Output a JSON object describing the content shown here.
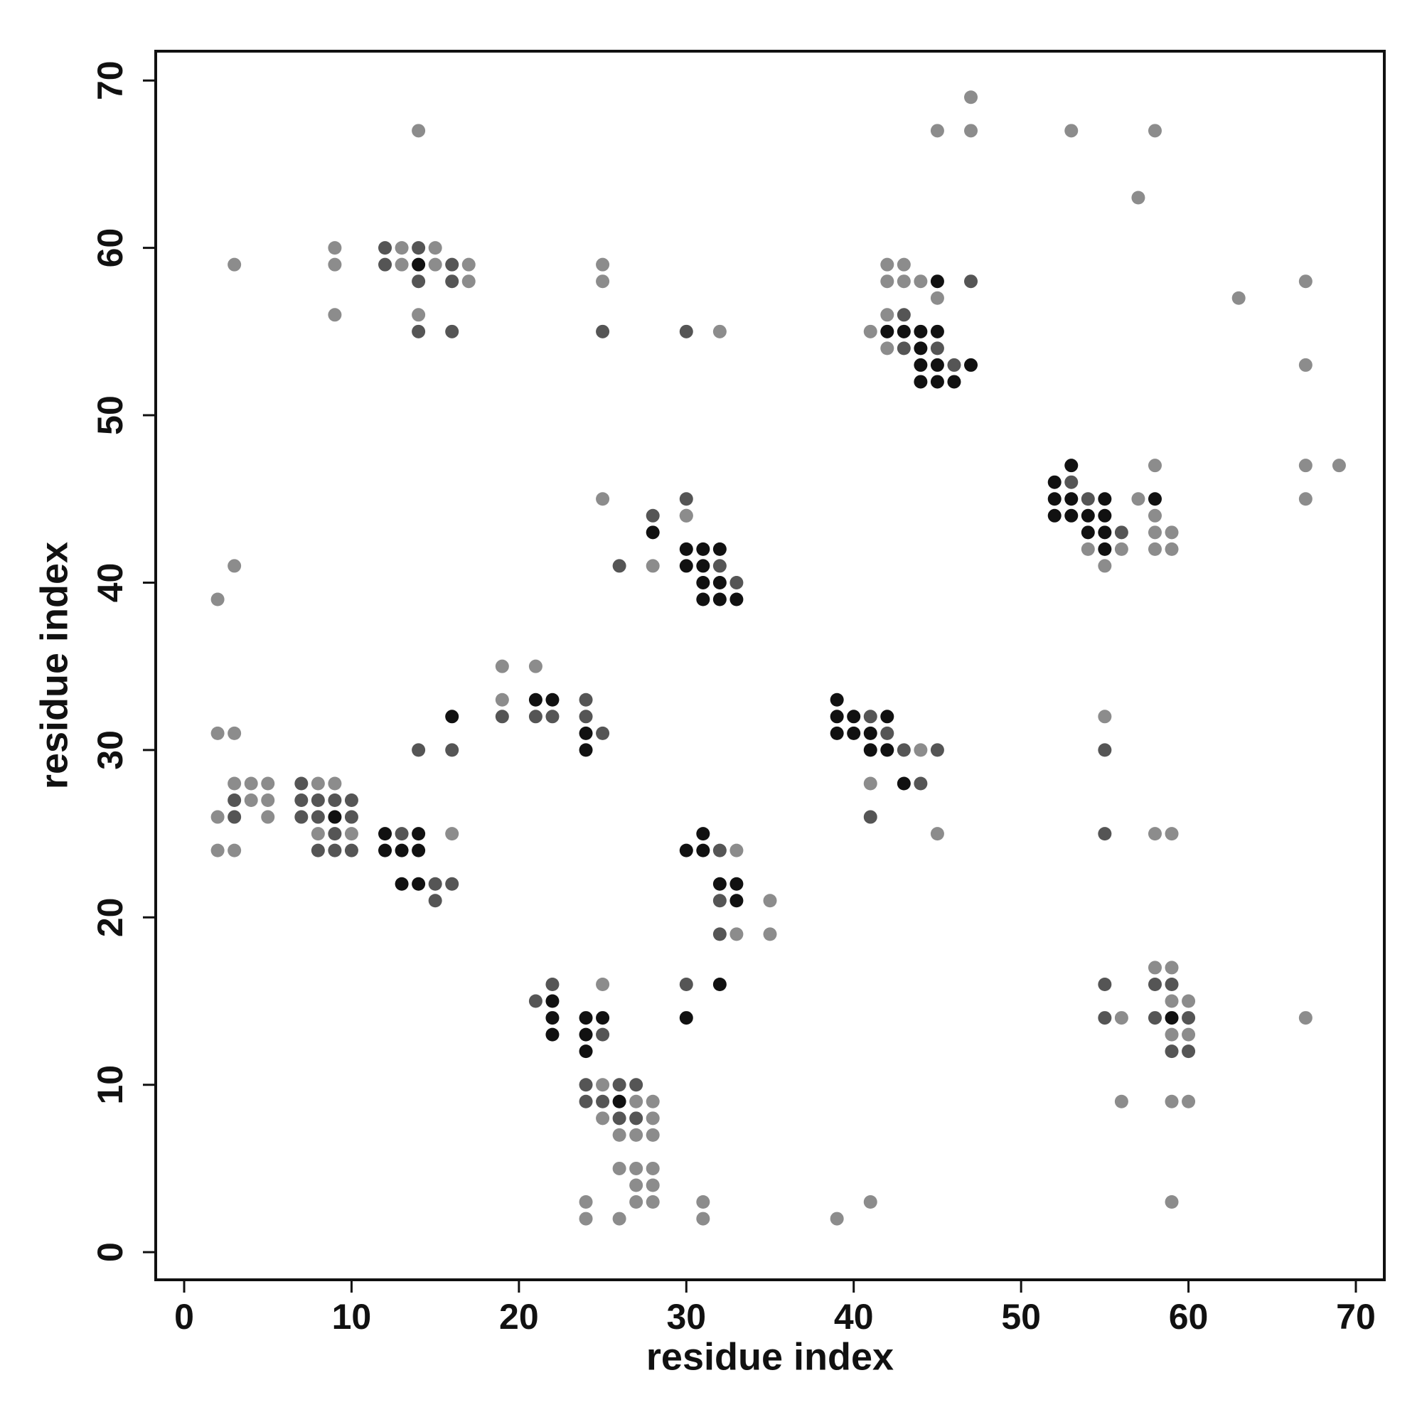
{
  "chart_data": {
    "type": "scatter",
    "x_label": "residue index",
    "y_label": "residue index",
    "xlim": [
      -1.7,
      71.7
    ],
    "ylim": [
      -1.65,
      71.75
    ],
    "xticks": [
      0,
      10,
      20,
      30,
      40,
      50,
      60,
      70
    ],
    "yticks": [
      0,
      10,
      20,
      30,
      40,
      50,
      60,
      70
    ],
    "series": [
      {
        "color": "#8c8c8c",
        "x": [
          47,
          14,
          45,
          47,
          53,
          58,
          57,
          9,
          13,
          15,
          3,
          9,
          13,
          15,
          17,
          25,
          42,
          43,
          17,
          25,
          42,
          43,
          44,
          67,
          45,
          63,
          9,
          14,
          42,
          32,
          41,
          42,
          67,
          58,
          67,
          69,
          25,
          57,
          67,
          30,
          58,
          30,
          58,
          59,
          54,
          56,
          58,
          59,
          28,
          3,
          55,
          2,
          19,
          21,
          19,
          55,
          2,
          3,
          44,
          3,
          4,
          5,
          8,
          9,
          41,
          4,
          5,
          2,
          5,
          8,
          10,
          16,
          45,
          58,
          59,
          2,
          3,
          33,
          35,
          33,
          35,
          58,
          59,
          25,
          59,
          60,
          56,
          67,
          59,
          60,
          25,
          27,
          28,
          56,
          59,
          60,
          25,
          28,
          26,
          27,
          28,
          26,
          27,
          28,
          27,
          28,
          24,
          27,
          28,
          31,
          41,
          59,
          24,
          26,
          31,
          39
        ],
        "y": [
          69,
          67,
          67,
          67,
          67,
          67,
          63,
          60,
          60,
          60,
          59,
          59,
          59,
          59,
          59,
          59,
          59,
          59,
          58,
          58,
          58,
          58,
          58,
          58,
          57,
          57,
          56,
          56,
          56,
          55,
          55,
          54,
          53,
          47,
          47,
          47,
          45,
          45,
          45,
          44,
          44,
          44,
          43,
          43,
          42,
          42,
          42,
          42,
          41,
          41,
          41,
          39,
          35,
          35,
          33,
          32,
          31,
          31,
          30,
          28,
          28,
          28,
          28,
          28,
          28,
          27,
          27,
          26,
          26,
          25,
          25,
          25,
          25,
          25,
          25,
          24,
          24,
          24,
          21,
          19,
          19,
          17,
          17,
          16,
          15,
          15,
          14,
          14,
          13,
          13,
          10,
          9,
          9,
          9,
          9,
          9,
          8,
          8,
          7,
          7,
          7,
          5,
          5,
          5,
          4,
          4,
          3,
          3,
          3,
          3,
          3,
          3,
          2,
          2,
          2,
          2
        ]
      },
      {
        "color": "#555555",
        "x": [
          12,
          14,
          12,
          16,
          14,
          16,
          47,
          43,
          14,
          16,
          25,
          30,
          43,
          45,
          46,
          53,
          30,
          54,
          28,
          56,
          32,
          26,
          33,
          24,
          19,
          21,
          22,
          24,
          41,
          25,
          42,
          14,
          16,
          43,
          45,
          55,
          7,
          44,
          3,
          7,
          8,
          9,
          10,
          3,
          7,
          8,
          10,
          41,
          9,
          13,
          55,
          8,
          9,
          10,
          32,
          15,
          16,
          15,
          32,
          32,
          22,
          30,
          55,
          58,
          59,
          21,
          55,
          58,
          60,
          25,
          59,
          60,
          24,
          26,
          27,
          24,
          25,
          26,
          27
        ],
        "y": [
          60,
          60,
          59,
          59,
          58,
          58,
          58,
          56,
          55,
          55,
          55,
          55,
          54,
          54,
          53,
          46,
          45,
          45,
          44,
          43,
          41,
          41,
          40,
          33,
          32,
          32,
          32,
          32,
          32,
          31,
          31,
          30,
          30,
          30,
          30,
          30,
          28,
          28,
          27,
          27,
          27,
          27,
          27,
          26,
          26,
          26,
          26,
          26,
          25,
          25,
          25,
          24,
          24,
          24,
          24,
          22,
          22,
          21,
          21,
          19,
          16,
          16,
          16,
          16,
          16,
          15,
          14,
          14,
          14,
          13,
          12,
          12,
          10,
          10,
          10,
          9,
          9,
          8,
          8
        ]
      },
      {
        "color": "#111111",
        "x": [
          14,
          45,
          42,
          43,
          44,
          45,
          44,
          44,
          45,
          47,
          44,
          45,
          46,
          53,
          52,
          52,
          53,
          55,
          58,
          52,
          53,
          54,
          55,
          28,
          54,
          55,
          30,
          31,
          32,
          55,
          30,
          31,
          31,
          32,
          31,
          32,
          33,
          21,
          22,
          39,
          16,
          39,
          40,
          42,
          24,
          39,
          40,
          41,
          24,
          41,
          42,
          43,
          9,
          12,
          14,
          31,
          12,
          13,
          14,
          30,
          31,
          13,
          14,
          32,
          33,
          33,
          32,
          22,
          22,
          24,
          25,
          30,
          59,
          22,
          24,
          24,
          26
        ],
        "y": [
          59,
          58,
          55,
          55,
          55,
          55,
          54,
          53,
          53,
          53,
          52,
          52,
          52,
          47,
          46,
          45,
          45,
          45,
          45,
          44,
          44,
          44,
          44,
          43,
          43,
          43,
          42,
          42,
          42,
          42,
          41,
          41,
          40,
          40,
          39,
          39,
          39,
          33,
          33,
          33,
          32,
          32,
          32,
          32,
          31,
          31,
          31,
          31,
          30,
          30,
          30,
          28,
          26,
          25,
          25,
          25,
          24,
          24,
          24,
          24,
          24,
          22,
          22,
          22,
          22,
          21,
          16,
          15,
          14,
          14,
          14,
          14,
          14,
          13,
          13,
          12,
          9
        ]
      }
    ]
  }
}
